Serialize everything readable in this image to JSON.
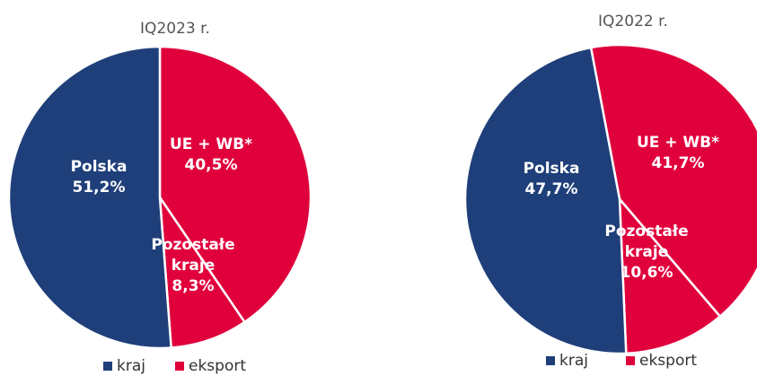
{
  "chart_data": [
    {
      "type": "pie",
      "title": "IQ2023 r.",
      "categories": [
        "UE + WB*",
        "Pozostałe kraje",
        "Polska"
      ],
      "values": [
        40.5,
        8.3,
        51.2
      ],
      "value_labels": [
        "40,5%",
        "8,3%",
        "51,2%"
      ],
      "colors": [
        "#e0003c",
        "#e0003c",
        "#1f3f7a"
      ],
      "legend": [
        {
          "name": "kraj",
          "color": "#1f3f7a"
        },
        {
          "name": "eksport",
          "color": "#e0003c"
        }
      ]
    },
    {
      "type": "pie",
      "title": "IQ2022 r.",
      "categories": [
        "UE + WB*",
        "Pozostałe kraje",
        "Polska"
      ],
      "values": [
        41.7,
        10.6,
        47.7
      ],
      "value_labels": [
        "41,7%",
        "10,6%",
        "47,7%"
      ],
      "colors": [
        "#e0003c",
        "#e0003c",
        "#1f3f7a"
      ],
      "legend": [
        {
          "name": "kraj",
          "color": "#1f3f7a"
        },
        {
          "name": "eksport",
          "color": "#e0003c"
        }
      ]
    }
  ]
}
